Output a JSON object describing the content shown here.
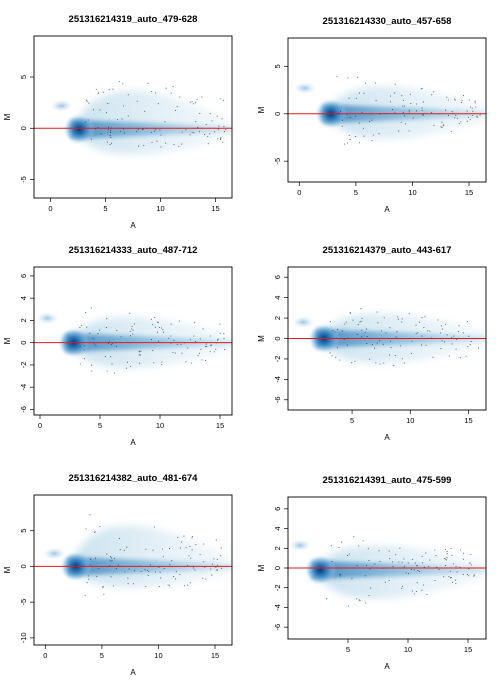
{
  "figure": {
    "x_axis_label": "A",
    "y_axis_label": "M"
  },
  "colors": {
    "density": "#2a6cb3",
    "density_light": "#cfe0f2",
    "reference_line": "#e31a1c",
    "outlier_points": "#1c1c1c",
    "frame": "#000000"
  },
  "chart_data": [
    {
      "type": "scatter",
      "title": "251316214319_auto_479-628",
      "xlabel": "A",
      "ylabel": "M",
      "xlim": [
        -1.5,
        16.5
      ],
      "ylim": [
        -6.8,
        9.0
      ],
      "xticks": [
        0,
        5,
        10,
        15
      ],
      "yticks": [
        -5,
        0,
        5
      ],
      "reference_line_y": 0,
      "density_center": [
        2.6,
        -0.1
      ],
      "minor_cluster": [
        1.0,
        2.2
      ],
      "fan_spread_up": 0.7,
      "fan_spread_down": 0.45
    },
    {
      "type": "scatter",
      "title": "251316214330_auto_457-658",
      "xlabel": "A",
      "ylabel": "M",
      "xlim": [
        -1.0,
        16.5
      ],
      "ylim": [
        -7.2,
        8.0
      ],
      "xticks": [
        0,
        5,
        10,
        15
      ],
      "yticks": [
        -5,
        0,
        5
      ],
      "reference_line_y": 0,
      "density_center": [
        2.8,
        0.0
      ],
      "minor_cluster": [
        0.5,
        2.7
      ],
      "fan_spread_up": 0.55,
      "fan_spread_down": 0.5
    },
    {
      "type": "scatter",
      "title": "251316214333_auto_487-712",
      "xlabel": "A",
      "ylabel": "M",
      "xlim": [
        -0.5,
        16.0
      ],
      "ylim": [
        -6.5,
        6.8
      ],
      "xticks": [
        0,
        5,
        10,
        15
      ],
      "yticks": [
        -6,
        -4,
        -2,
        0,
        2,
        4,
        6
      ],
      "reference_line_y": 0,
      "density_center": [
        2.8,
        0.0
      ],
      "minor_cluster": [
        0.6,
        2.2
      ],
      "fan_spread_up": 0.5,
      "fan_spread_down": 0.5
    },
    {
      "type": "scatter",
      "title": "251316214379_auto_443-617",
      "xlabel": "A",
      "ylabel": "M",
      "xlim": [
        -0.5,
        16.5
      ],
      "ylim": [
        -7.0,
        7.0
      ],
      "xticks": [
        5,
        10,
        15
      ],
      "yticks": [
        -6,
        -4,
        -2,
        0,
        2,
        4,
        6
      ],
      "reference_line_y": 0,
      "density_center": [
        2.6,
        0.0
      ],
      "minor_cluster": [
        0.8,
        1.6
      ],
      "fan_spread_up": 0.5,
      "fan_spread_down": 0.5
    },
    {
      "type": "scatter",
      "title": "251316214382_auto_481-674",
      "xlabel": "A",
      "ylabel": "M",
      "xlim": [
        -1.0,
        16.5
      ],
      "ylim": [
        -11.0,
        10.0
      ],
      "xticks": [
        0,
        5,
        10,
        15
      ],
      "yticks": [
        -10,
        -5,
        0,
        5
      ],
      "reference_line_y": 0,
      "density_center": [
        2.7,
        0.0
      ],
      "minor_cluster": [
        0.8,
        1.8
      ],
      "fan_spread_up": 0.8,
      "fan_spread_down": 0.4
    },
    {
      "type": "scatter",
      "title": "251316214391_auto_475-599",
      "xlabel": "A",
      "ylabel": "M",
      "xlim": [
        0.0,
        16.5
      ],
      "ylim": [
        -7.2,
        7.2
      ],
      "xticks": [
        5,
        10,
        15
      ],
      "yticks": [
        -6,
        -4,
        -2,
        0,
        2,
        4,
        6
      ],
      "reference_line_y": 0,
      "density_center": [
        2.7,
        -0.2
      ],
      "minor_cluster": [
        1.0,
        2.3
      ],
      "fan_spread_up": 0.5,
      "fan_spread_down": 0.6
    }
  ]
}
